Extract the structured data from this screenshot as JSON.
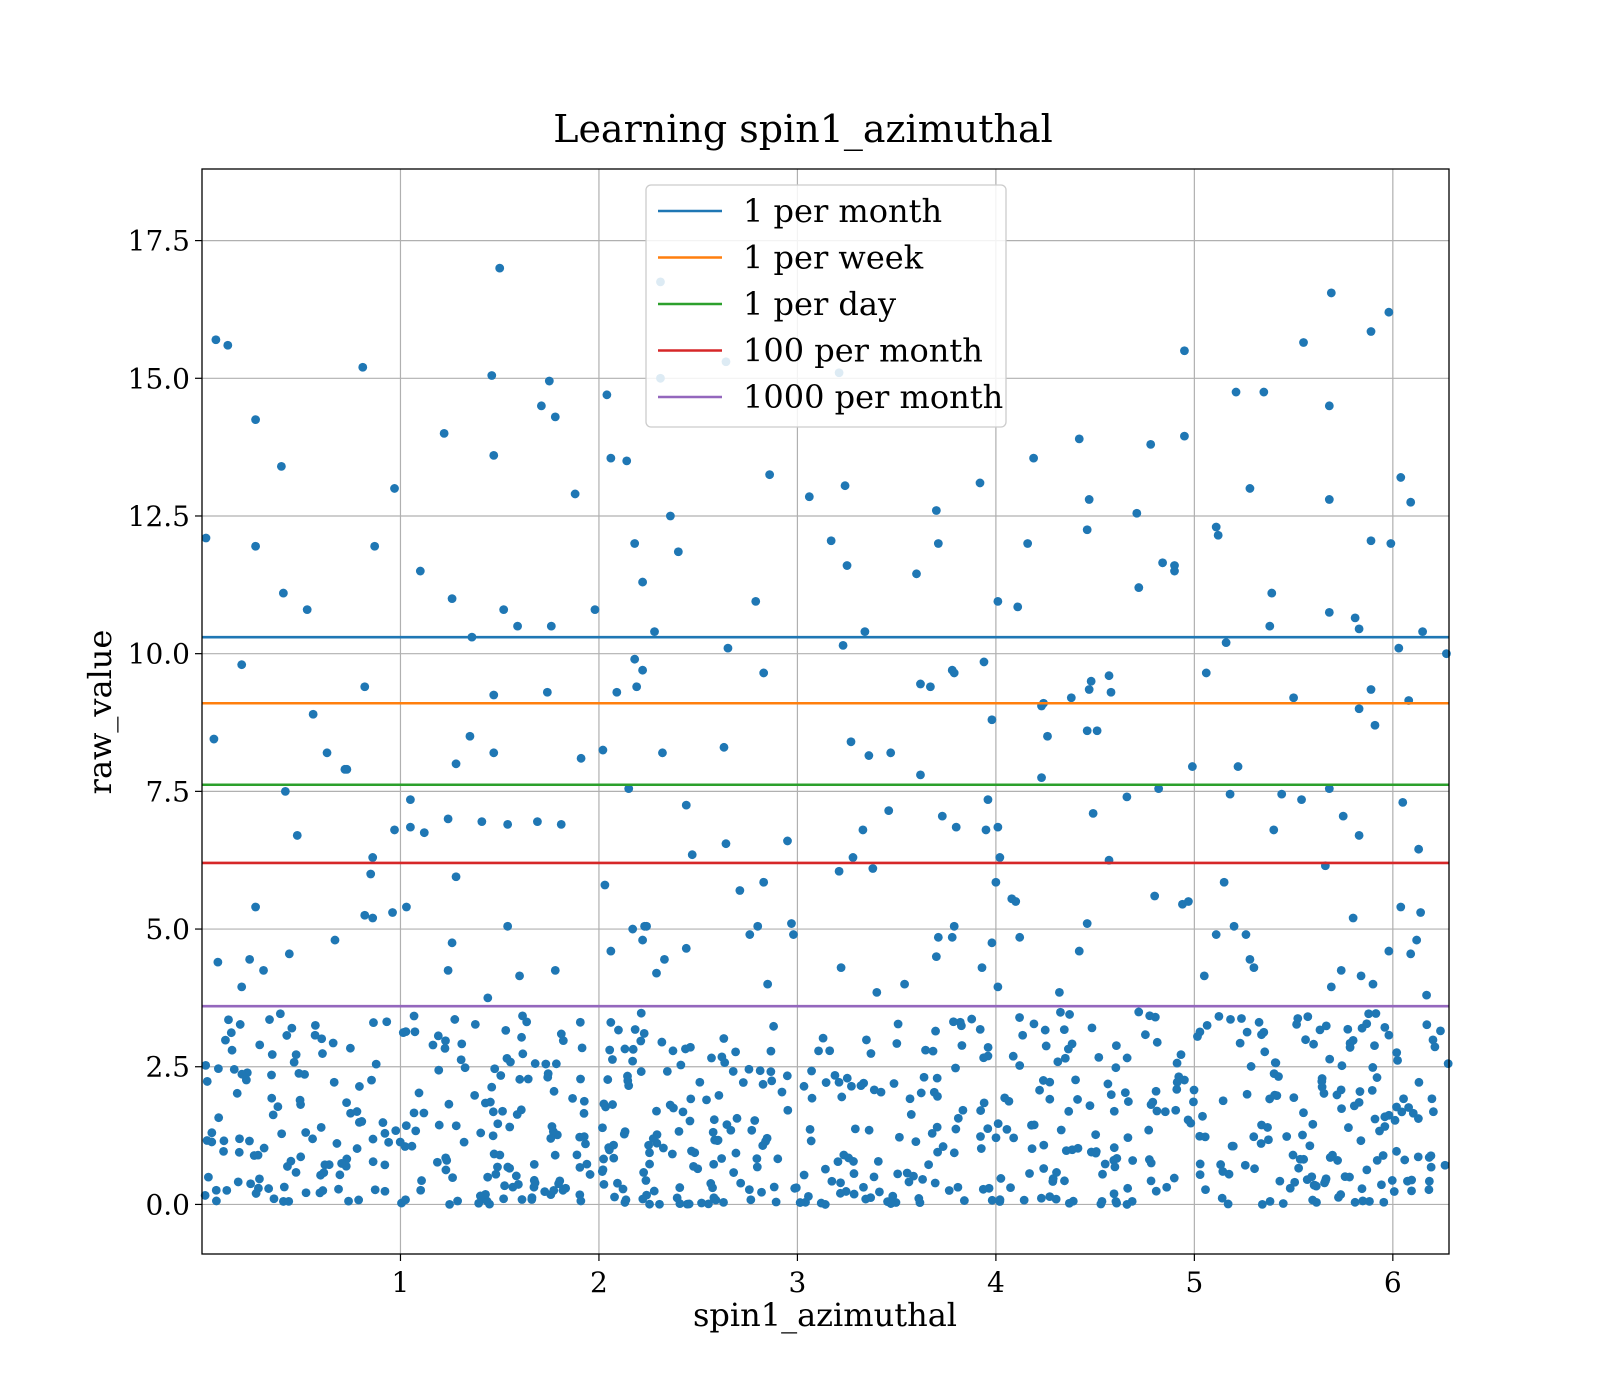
{
  "chart_data": {
    "type": "scatter",
    "title": "Learning spin1_azimuthal",
    "xlabel": "spin1_azimuthal",
    "ylabel": "raw_value",
    "xlim": [
      0.0,
      6.283
    ],
    "ylim": [
      -0.9,
      18.8
    ],
    "xticks": [
      1,
      2,
      3,
      4,
      5,
      6
    ],
    "xtick_labels": [
      "1",
      "2",
      "3",
      "4",
      "5",
      "6"
    ],
    "yticks": [
      0.0,
      2.5,
      5.0,
      7.5,
      10.0,
      12.5,
      15.0,
      17.5
    ],
    "ytick_labels": [
      "0.0",
      "2.5",
      "5.0",
      "7.5",
      "10.0",
      "12.5",
      "15.0",
      "17.5"
    ],
    "grid": true,
    "legend_position": "top-center",
    "scatter_color": "#1f77b4",
    "hlines": [
      {
        "name": "1 per month",
        "y": 10.3,
        "color": "#1f77b4"
      },
      {
        "name": "1 per week",
        "y": 9.1,
        "color": "#ff7f0e"
      },
      {
        "name": "1 per day",
        "y": 7.62,
        "color": "#2ca02c"
      },
      {
        "name": "100 per month",
        "y": 6.2,
        "color": "#d62728"
      },
      {
        "name": "1000 per month",
        "y": 3.6,
        "color": "#9467bd"
      }
    ],
    "points": [
      [
        0.02,
        12.1
      ],
      [
        0.06,
        8.45
      ],
      [
        0.07,
        15.7
      ],
      [
        0.13,
        15.6
      ],
      [
        0.27,
        14.25
      ],
      [
        0.27,
        11.95
      ],
      [
        0.4,
        13.4
      ],
      [
        0.41,
        11.1
      ],
      [
        0.53,
        10.8
      ],
      [
        0.63,
        8.2
      ],
      [
        0.73,
        7.9
      ],
      [
        0.81,
        15.2
      ],
      [
        0.82,
        9.4
      ],
      [
        0.87,
        11.95
      ],
      [
        0.97,
        13.0
      ],
      [
        1.1,
        11.5
      ],
      [
        1.22,
        14.0
      ],
      [
        1.26,
        11.0
      ],
      [
        1.36,
        10.3
      ],
      [
        1.46,
        15.05
      ],
      [
        1.47,
        13.6
      ],
      [
        1.5,
        17.0
      ],
      [
        1.52,
        10.8
      ],
      [
        1.59,
        10.5
      ],
      [
        1.71,
        14.5
      ],
      [
        1.75,
        14.95
      ],
      [
        1.76,
        10.5
      ],
      [
        1.78,
        14.3
      ],
      [
        1.88,
        12.9
      ],
      [
        1.98,
        10.8
      ],
      [
        2.04,
        14.7
      ],
      [
        2.06,
        13.55
      ],
      [
        2.14,
        13.5
      ],
      [
        2.18,
        12.0
      ],
      [
        2.22,
        11.3
      ],
      [
        2.28,
        10.4
      ],
      [
        2.31,
        16.75
      ],
      [
        2.31,
        15.0
      ],
      [
        2.36,
        12.5
      ],
      [
        2.4,
        11.85
      ],
      [
        2.64,
        15.3
      ],
      [
        2.65,
        10.1
      ],
      [
        2.79,
        10.95
      ],
      [
        2.86,
        13.25
      ],
      [
        3.06,
        12.85
      ],
      [
        3.17,
        12.05
      ],
      [
        3.21,
        15.1
      ],
      [
        3.24,
        13.05
      ],
      [
        3.25,
        11.6
      ],
      [
        3.23,
        10.15
      ],
      [
        3.34,
        10.4
      ],
      [
        3.6,
        11.45
      ],
      [
        3.7,
        12.6
      ],
      [
        3.71,
        12.0
      ],
      [
        3.92,
        13.1
      ],
      [
        4.01,
        10.95
      ],
      [
        4.11,
        10.85
      ],
      [
        4.16,
        12.0
      ],
      [
        4.19,
        13.55
      ],
      [
        4.42,
        13.9
      ],
      [
        4.46,
        12.25
      ],
      [
        4.47,
        12.8
      ],
      [
        4.71,
        12.55
      ],
      [
        4.72,
        11.2
      ],
      [
        4.78,
        13.8
      ],
      [
        4.84,
        11.65
      ],
      [
        4.9,
        11.6
      ],
      [
        4.9,
        11.5
      ],
      [
        4.95,
        15.5
      ],
      [
        4.95,
        13.95
      ],
      [
        5.11,
        12.3
      ],
      [
        5.12,
        12.15
      ],
      [
        5.16,
        10.2
      ],
      [
        5.21,
        14.75
      ],
      [
        5.28,
        13.0
      ],
      [
        5.35,
        14.75
      ],
      [
        5.39,
        11.1
      ],
      [
        5.38,
        10.5
      ],
      [
        5.55,
        15.65
      ],
      [
        5.69,
        16.55
      ],
      [
        5.68,
        14.5
      ],
      [
        5.68,
        12.8
      ],
      [
        5.68,
        10.75
      ],
      [
        5.81,
        10.65
      ],
      [
        5.83,
        10.45
      ],
      [
        5.89,
        15.85
      ],
      [
        5.89,
        12.05
      ],
      [
        5.98,
        16.2
      ],
      [
        5.99,
        12.0
      ],
      [
        6.04,
        13.2
      ],
      [
        6.09,
        12.75
      ],
      [
        6.03,
        10.1
      ],
      [
        6.15,
        10.4
      ],
      [
        6.27,
        10.0
      ],
      [
        0.2,
        9.8
      ],
      [
        0.42,
        7.5
      ],
      [
        0.56,
        8.9
      ],
      [
        1.05,
        7.35
      ],
      [
        1.28,
        8.0
      ],
      [
        1.35,
        8.5
      ],
      [
        1.47,
        8.2
      ],
      [
        1.47,
        9.25
      ],
      [
        1.74,
        9.3
      ],
      [
        1.91,
        8.1
      ],
      [
        2.02,
        8.25
      ],
      [
        2.09,
        9.3
      ],
      [
        2.18,
        9.9
      ],
      [
        2.19,
        9.4
      ],
      [
        2.22,
        9.7
      ],
      [
        2.32,
        8.2
      ],
      [
        2.63,
        8.3
      ],
      [
        2.83,
        9.65
      ],
      [
        3.27,
        8.4
      ],
      [
        3.36,
        8.15
      ],
      [
        3.47,
        8.2
      ],
      [
        3.62,
        9.45
      ],
      [
        3.67,
        9.4
      ],
      [
        3.78,
        9.7
      ],
      [
        3.79,
        9.65
      ],
      [
        3.94,
        9.85
      ],
      [
        3.98,
        8.8
      ],
      [
        4.23,
        9.05
      ],
      [
        4.24,
        9.1
      ],
      [
        4.26,
        8.5
      ],
      [
        4.38,
        9.2
      ],
      [
        4.46,
        8.6
      ],
      [
        4.48,
        9.5
      ],
      [
        4.47,
        9.35
      ],
      [
        4.51,
        8.6
      ],
      [
        4.57,
        9.6
      ],
      [
        4.58,
        9.3
      ],
      [
        5.06,
        9.65
      ],
      [
        5.5,
        9.2
      ],
      [
        5.83,
        9.0
      ],
      [
        5.89,
        9.35
      ],
      [
        5.91,
        8.7
      ],
      [
        6.08,
        9.15
      ],
      [
        0.48,
        6.7
      ],
      [
        0.72,
        7.9
      ],
      [
        0.86,
        6.3
      ],
      [
        0.97,
        6.8
      ],
      [
        1.05,
        6.85
      ],
      [
        1.12,
        6.75
      ],
      [
        1.24,
        7.0
      ],
      [
        1.41,
        6.95
      ],
      [
        1.54,
        6.9
      ],
      [
        1.69,
        6.95
      ],
      [
        1.81,
        6.9
      ],
      [
        2.15,
        7.55
      ],
      [
        2.44,
        7.25
      ],
      [
        2.47,
        6.35
      ],
      [
        2.64,
        6.55
      ],
      [
        2.95,
        6.6
      ],
      [
        3.21,
        6.05
      ],
      [
        3.28,
        6.3
      ],
      [
        3.33,
        6.8
      ],
      [
        3.38,
        6.1
      ],
      [
        3.46,
        7.15
      ],
      [
        3.62,
        7.8
      ],
      [
        3.73,
        7.05
      ],
      [
        3.8,
        6.85
      ],
      [
        3.95,
        6.8
      ],
      [
        3.96,
        7.35
      ],
      [
        4.01,
        6.85
      ],
      [
        4.02,
        6.3
      ],
      [
        4.23,
        7.75
      ],
      [
        4.49,
        7.1
      ],
      [
        4.57,
        6.25
      ],
      [
        4.66,
        7.4
      ],
      [
        4.82,
        7.55
      ],
      [
        4.99,
        7.95
      ],
      [
        5.18,
        7.45
      ],
      [
        5.22,
        7.95
      ],
      [
        5.4,
        6.8
      ],
      [
        5.44,
        7.45
      ],
      [
        5.54,
        7.35
      ],
      [
        5.66,
        6.15
      ],
      [
        5.68,
        7.55
      ],
      [
        5.75,
        7.05
      ],
      [
        5.83,
        6.7
      ],
      [
        6.05,
        7.3
      ],
      [
        6.13,
        6.45
      ],
      [
        0.08,
        4.4
      ],
      [
        0.2,
        3.95
      ],
      [
        0.24,
        4.45
      ],
      [
        0.27,
        5.4
      ],
      [
        0.31,
        4.25
      ],
      [
        0.44,
        4.55
      ],
      [
        0.67,
        4.8
      ],
      [
        0.82,
        5.25
      ],
      [
        0.85,
        6.0
      ],
      [
        0.86,
        5.2
      ],
      [
        0.96,
        5.3
      ],
      [
        1.03,
        5.4
      ],
      [
        1.24,
        4.25
      ],
      [
        1.26,
        4.75
      ],
      [
        1.28,
        5.95
      ],
      [
        1.44,
        3.75
      ],
      [
        1.54,
        5.05
      ],
      [
        1.6,
        4.15
      ],
      [
        1.78,
        4.25
      ],
      [
        2.03,
        5.8
      ],
      [
        2.06,
        4.6
      ],
      [
        2.17,
        5.0
      ],
      [
        2.22,
        4.8
      ],
      [
        2.23,
        5.05
      ],
      [
        2.24,
        5.05
      ],
      [
        2.29,
        4.2
      ],
      [
        2.33,
        4.45
      ],
      [
        2.44,
        4.65
      ],
      [
        2.71,
        5.7
      ],
      [
        2.76,
        4.9
      ],
      [
        2.8,
        5.05
      ],
      [
        2.83,
        5.85
      ],
      [
        2.85,
        4.0
      ],
      [
        2.97,
        5.1
      ],
      [
        2.98,
        4.9
      ],
      [
        3.22,
        4.3
      ],
      [
        3.4,
        3.85
      ],
      [
        3.54,
        4.0
      ],
      [
        3.7,
        4.5
      ],
      [
        3.71,
        4.85
      ],
      [
        3.78,
        4.85
      ],
      [
        3.79,
        5.05
      ],
      [
        3.93,
        4.3
      ],
      [
        3.98,
        4.75
      ],
      [
        4.0,
        5.85
      ],
      [
        4.01,
        3.95
      ],
      [
        4.08,
        5.55
      ],
      [
        4.1,
        5.5
      ],
      [
        4.12,
        4.85
      ],
      [
        4.32,
        3.85
      ],
      [
        4.42,
        4.6
      ],
      [
        4.46,
        5.1
      ],
      [
        4.8,
        5.6
      ],
      [
        4.94,
        5.45
      ],
      [
        4.97,
        5.5
      ],
      [
        5.05,
        4.15
      ],
      [
        5.11,
        4.9
      ],
      [
        5.15,
        5.85
      ],
      [
        5.2,
        5.05
      ],
      [
        5.26,
        4.9
      ],
      [
        5.28,
        4.45
      ],
      [
        5.3,
        4.3
      ],
      [
        5.69,
        3.95
      ],
      [
        5.74,
        4.25
      ],
      [
        5.8,
        5.2
      ],
      [
        5.84,
        4.15
      ],
      [
        5.9,
        4.0
      ],
      [
        5.98,
        4.6
      ],
      [
        6.04,
        5.4
      ],
      [
        6.09,
        4.55
      ],
      [
        6.12,
        4.8
      ],
      [
        6.14,
        5.3
      ],
      [
        6.17,
        3.8
      ]
    ],
    "noise_band": {
      "count": 720,
      "y_range": [
        0.0,
        3.5
      ]
    }
  }
}
